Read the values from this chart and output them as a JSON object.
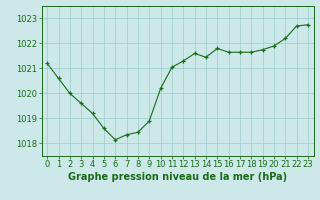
{
  "x": [
    0,
    1,
    2,
    3,
    4,
    5,
    6,
    7,
    8,
    9,
    10,
    11,
    12,
    13,
    14,
    15,
    16,
    17,
    18,
    19,
    20,
    21,
    22,
    23
  ],
  "y": [
    1021.2,
    1020.6,
    1020.0,
    1019.6,
    1019.2,
    1018.6,
    1018.15,
    1018.35,
    1018.45,
    1018.9,
    1020.2,
    1021.05,
    1021.3,
    1021.6,
    1021.45,
    1021.8,
    1021.65,
    1021.65,
    1021.65,
    1021.75,
    1021.9,
    1022.2,
    1022.7,
    1022.75
  ],
  "line_color": "#1a6b1a",
  "marker_color": "#1a6b1a",
  "bg_color": "#cce8e8",
  "grid_color": "#99cccc",
  "title": "Graphe pression niveau de la mer (hPa)",
  "title_color": "#1a6b1a",
  "ylim": [
    1017.5,
    1023.5
  ],
  "yticks": [
    1018,
    1019,
    1020,
    1021,
    1022,
    1023
  ],
  "xticks": [
    0,
    1,
    2,
    3,
    4,
    5,
    6,
    7,
    8,
    9,
    10,
    11,
    12,
    13,
    14,
    15,
    16,
    17,
    18,
    19,
    20,
    21,
    22,
    23
  ],
  "title_fontsize": 7.0,
  "tick_fontsize": 6.0,
  "tick_color": "#1a6b1a",
  "spine_color": "#1a6b1a"
}
